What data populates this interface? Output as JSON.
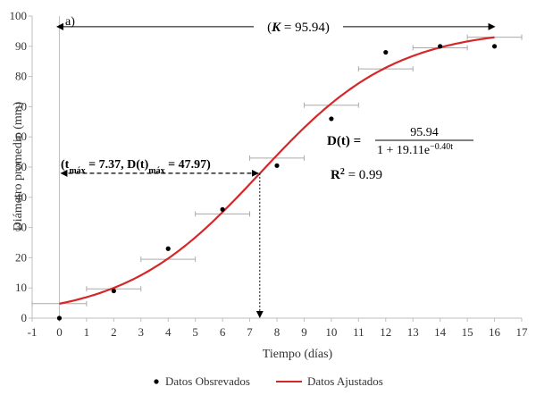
{
  "chart_data": {
    "type": "scatter",
    "panel_label": "a)",
    "xlabel": "Tiempo (días)",
    "ylabel": "Diámetro promedio (mm)",
    "xlim": [
      -1,
      17
    ],
    "ylim": [
      0,
      100
    ],
    "xticks": [
      -1,
      0,
      1,
      2,
      3,
      4,
      5,
      6,
      7,
      8,
      9,
      10,
      11,
      12,
      13,
      14,
      15,
      16,
      17
    ],
    "yticks": [
      0,
      10,
      20,
      30,
      40,
      50,
      60,
      70,
      80,
      90,
      100
    ],
    "grid": false,
    "legend_position": "bottom",
    "series": [
      {
        "name": "Datos Obsrevados",
        "type": "scatter",
        "color": "#000000",
        "points": [
          {
            "x": 0,
            "y": 0
          },
          {
            "x": 2,
            "y": 9
          },
          {
            "x": 4,
            "y": 23
          },
          {
            "x": 6,
            "y": 36
          },
          {
            "x": 8,
            "y": 50.5
          },
          {
            "x": 10,
            "y": 66
          },
          {
            "x": 12,
            "y": 88
          },
          {
            "x": 14,
            "y": 90
          },
          {
            "x": 16,
            "y": 90
          }
        ]
      },
      {
        "name": "Datos Ajustados",
        "type": "line",
        "color": "#d62728",
        "model": {
          "K": 95.94,
          "a": 19.11,
          "r": 0.4
        },
        "x_range": [
          0,
          16
        ],
        "error_bars_x": [
          {
            "x": 0,
            "y": 4.8,
            "xerr": 1
          },
          {
            "x": 2,
            "y": 9.7,
            "xerr": 1
          },
          {
            "x": 4,
            "y": 19.5,
            "xerr": 1
          },
          {
            "x": 6,
            "y": 34.5,
            "xerr": 1
          },
          {
            "x": 8,
            "y": 53,
            "xerr": 1
          },
          {
            "x": 10,
            "y": 70.5,
            "xerr": 1
          },
          {
            "x": 12,
            "y": 82.5,
            "xerr": 1
          },
          {
            "x": 14,
            "y": 89.5,
            "xerr": 1
          },
          {
            "x": 16,
            "y": 93,
            "xerr": 1
          }
        ]
      }
    ],
    "annotations": {
      "K": {
        "label": "(𝑲 = 95.94)",
        "y": 96.5,
        "x_from": -1,
        "x_to": 16
      },
      "inflection": {
        "x": 7.37,
        "y": 47.97,
        "label": "(t<sub>máx</sub> = 7.37, D(t)<sub>máx</sub> = 47.97)"
      },
      "equation": {
        "lhs": "D(t) =",
        "numerator": "95.94",
        "denominator": "1 + 19.11e",
        "exponent": "−0.40t"
      },
      "r2": {
        "label": "R",
        "sup": "2",
        "value": " = 0.99"
      }
    }
  }
}
